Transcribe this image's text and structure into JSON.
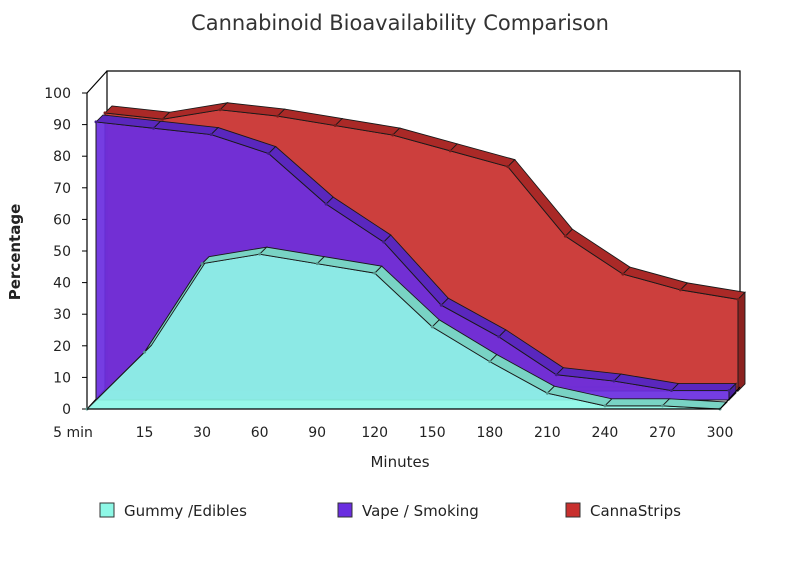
{
  "chart_data": {
    "type": "area",
    "title": "Cannabinoid Bioavailability Comparison",
    "xlabel": "Minutes",
    "ylabel": "Percentage",
    "categories": [
      "5 min",
      "15",
      "30",
      "60",
      "90",
      "120",
      "150",
      "180",
      "210",
      "240",
      "270",
      "300"
    ],
    "ylim": [
      0,
      100
    ],
    "yticks": [
      0,
      10,
      20,
      30,
      40,
      50,
      60,
      70,
      80,
      90,
      100
    ],
    "three_d": true,
    "stacked": false,
    "legend_position": "bottom",
    "series": [
      {
        "name": "CannaStrips",
        "color": "#c8302e",
        "values": [
          88,
          86,
          89,
          87,
          84,
          81,
          76,
          71,
          49,
          37,
          32,
          29
        ]
      },
      {
        "name": "Vape / Smoking",
        "color": "#6a2ee0",
        "values": [
          88,
          86,
          84,
          78,
          62,
          50,
          30,
          20,
          8,
          6,
          3,
          3
        ]
      },
      {
        "name": "Gummy /Edibles",
        "color": "#8ef8e6",
        "values": [
          0,
          18,
          46,
          49,
          46,
          43,
          26,
          15,
          5,
          1,
          1,
          0
        ]
      }
    ],
    "legend": [
      "Gummy /Edibles",
      "Vape / Smoking",
      "CannaStrips"
    ]
  }
}
